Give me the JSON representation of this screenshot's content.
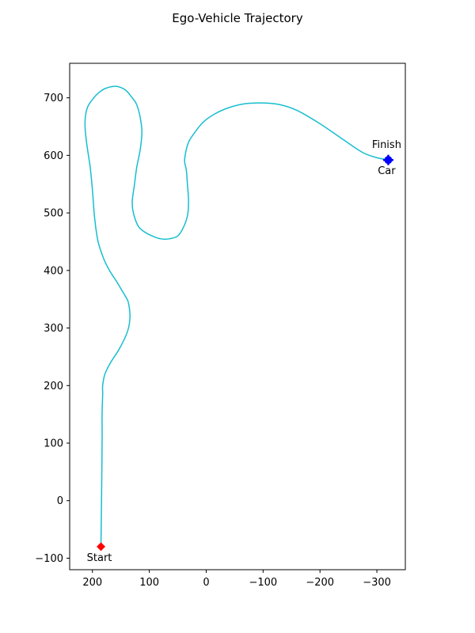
{
  "chart_data": {
    "type": "line",
    "title": "Ego-Vehicle Trajectory",
    "xlabel": "",
    "ylabel": "",
    "xlim": [
      240,
      -350
    ],
    "ylim": [
      -120,
      760
    ],
    "x_inverted": true,
    "grid": false,
    "xticks": [
      200,
      100,
      0,
      -100,
      -200,
      -300
    ],
    "xtick_labels": [
      "200",
      "100",
      "0",
      "−100",
      "−200",
      "−300"
    ],
    "yticks": [
      -100,
      0,
      100,
      200,
      300,
      400,
      500,
      600,
      700
    ],
    "ytick_labels": [
      "−100",
      "0",
      "100",
      "200",
      "300",
      "400",
      "500",
      "600",
      "700"
    ],
    "series": [
      {
        "color": "#17becf",
        "x": [
          185,
          184,
          183,
          183,
          182,
          182,
          178,
          168,
          152,
          138,
          134,
          137,
          142,
          148,
          157,
          170,
          180,
          190,
          196,
          200,
          204,
          210,
          213,
          212,
          208,
          200,
          190,
          178,
          162,
          150,
          140,
          130,
          123,
          118,
          115,
          113,
          116,
          122,
          126,
          130,
          128,
          120,
          110,
          95,
          80,
          65,
          50,
          40,
          33,
          31,
          33,
          35,
          38,
          35,
          30,
          20,
          5,
          -15,
          -40,
          -70,
          -100,
          -130,
          -160,
          -200,
          -240,
          -275,
          -300,
          -320
        ],
        "y": [
          -80,
          0,
          100,
          150,
          185,
          200,
          220,
          240,
          265,
          295,
          320,
          345,
          355,
          365,
          380,
          400,
          420,
          450,
          490,
          540,
          580,
          620,
          650,
          670,
          685,
          697,
          708,
          716,
          720,
          718,
          712,
          700,
          690,
          675,
          660,
          640,
          610,
          580,
          550,
          520,
          500,
          478,
          468,
          460,
          455,
          455,
          460,
          475,
          495,
          520,
          550,
          575,
          590,
          610,
          625,
          640,
          658,
          672,
          683,
          690,
          691,
          688,
          678,
          655,
          628,
          605,
          596,
          592
        ]
      }
    ],
    "markers": [
      {
        "label": "Start",
        "x": 185,
        "y": -80,
        "shape": "diamond",
        "color": "#ff0000",
        "label_position": "below"
      },
      {
        "label": "Finish",
        "x": -320,
        "y": 592,
        "shape": "circle",
        "color": "#0000ff",
        "label_position": "above"
      },
      {
        "label": "Car",
        "x": -320,
        "y": 592,
        "shape": "point",
        "color": "#0000ff",
        "label_position": "below"
      }
    ]
  }
}
